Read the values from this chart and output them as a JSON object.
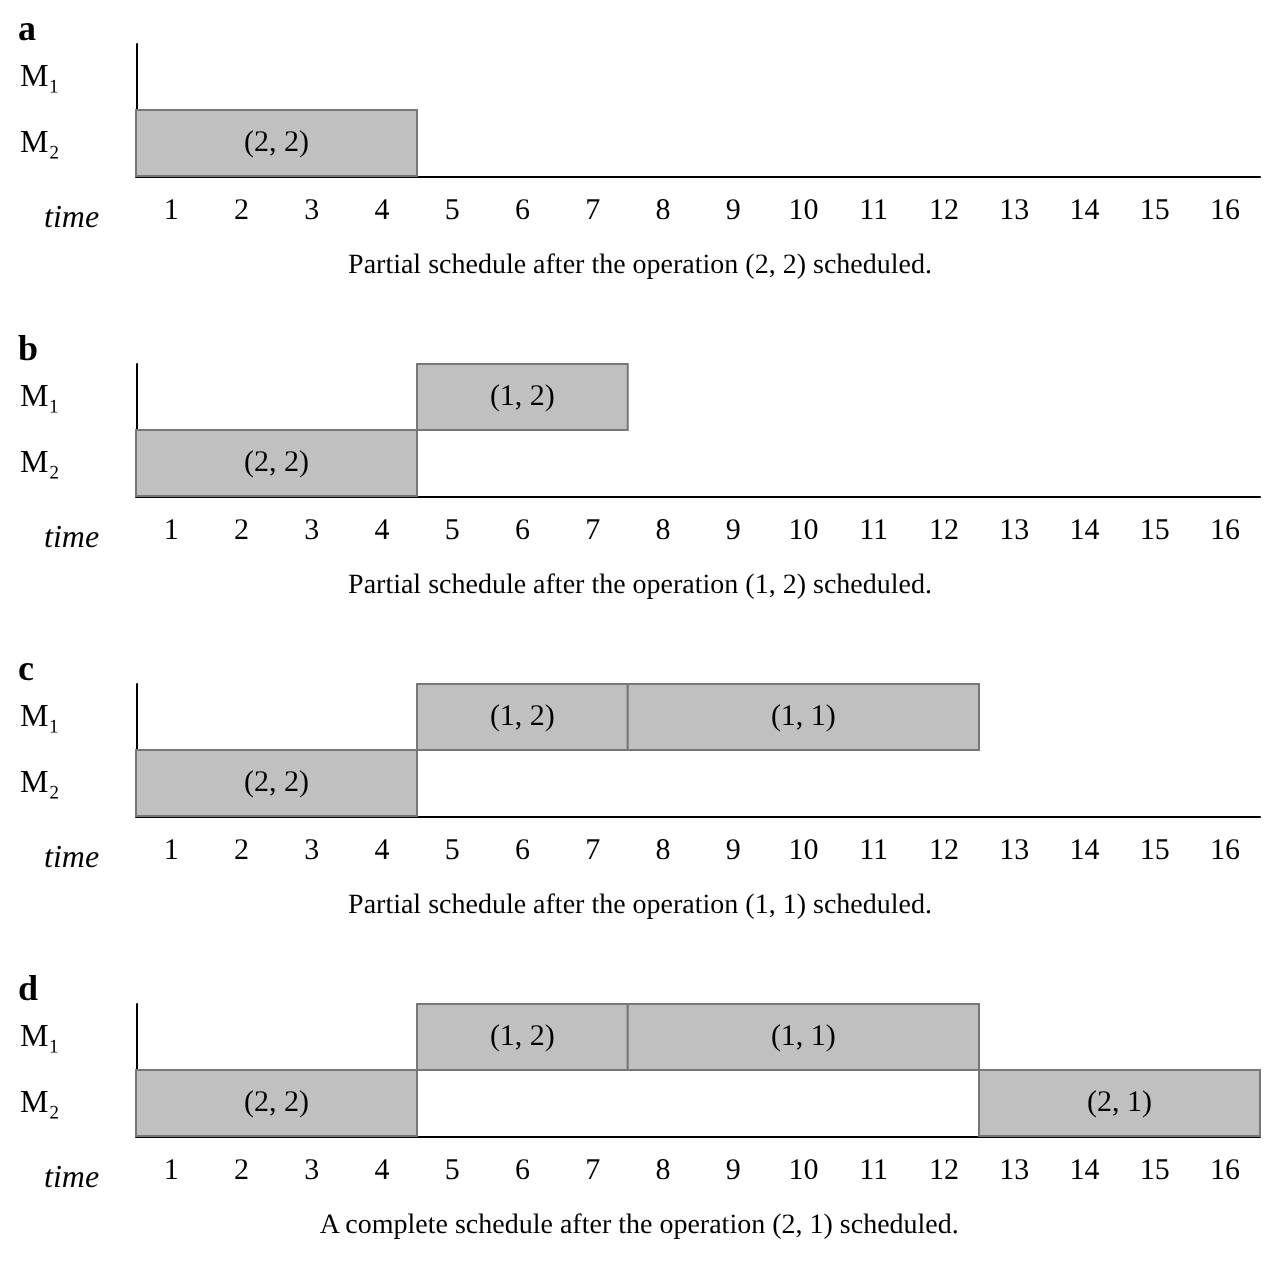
{
  "chart_data": [
    {
      "type": "bar",
      "orientation": "horizontal",
      "title": "a",
      "xlabel": "time",
      "categories": [
        "M₁",
        "M₂"
      ],
      "xlim": [
        0.5,
        16.5
      ],
      "xticks": [
        1,
        2,
        3,
        4,
        5,
        6,
        7,
        8,
        9,
        10,
        11,
        12,
        13,
        14,
        15,
        16
      ],
      "grid": false,
      "series": [
        {
          "color": "#c0c0c0",
          "values": [
            null,
            4
          ],
          "base": [
            null,
            0.5
          ],
          "value_labels": [
            null,
            "(2, 2)"
          ]
        }
      ],
      "annotations": [
        "Partial schedule after the operation (2, 2) scheduled."
      ]
    },
    {
      "type": "bar",
      "orientation": "horizontal",
      "title": "b",
      "xlabel": "time",
      "categories": [
        "M₁",
        "M₂"
      ],
      "xlim": [
        0.5,
        16.5
      ],
      "xticks": [
        1,
        2,
        3,
        4,
        5,
        6,
        7,
        8,
        9,
        10,
        11,
        12,
        13,
        14,
        15,
        16
      ],
      "grid": false,
      "series": [
        {
          "color": "#c0c0c0",
          "values": [
            null,
            4
          ],
          "base": [
            null,
            0.5
          ],
          "value_labels": [
            null,
            "(2, 2)"
          ]
        },
        {
          "color": "#c0c0c0",
          "values": [
            3,
            null
          ],
          "base": [
            4.5,
            null
          ],
          "value_labels": [
            "(1, 2)",
            null
          ]
        }
      ],
      "annotations": [
        "Partial schedule after the operation (1, 2) scheduled."
      ]
    },
    {
      "type": "bar",
      "orientation": "horizontal",
      "title": "c",
      "xlabel": "time",
      "categories": [
        "M₁",
        "M₂"
      ],
      "xlim": [
        0.5,
        16.5
      ],
      "xticks": [
        1,
        2,
        3,
        4,
        5,
        6,
        7,
        8,
        9,
        10,
        11,
        12,
        13,
        14,
        15,
        16
      ],
      "grid": false,
      "series": [
        {
          "color": "#c0c0c0",
          "values": [
            null,
            4
          ],
          "base": [
            null,
            0.5
          ],
          "value_labels": [
            null,
            "(2, 2)"
          ]
        },
        {
          "color": "#c0c0c0",
          "values": [
            3,
            null
          ],
          "base": [
            4.5,
            null
          ],
          "value_labels": [
            "(1, 2)",
            null
          ]
        },
        {
          "color": "#c0c0c0",
          "values": [
            5,
            null
          ],
          "base": [
            7.5,
            null
          ],
          "value_labels": [
            "(1, 1)",
            null
          ]
        }
      ],
      "annotations": [
        "Partial schedule after the operation (1, 1) scheduled."
      ]
    },
    {
      "type": "bar",
      "orientation": "horizontal",
      "title": "d",
      "xlabel": "time",
      "categories": [
        "M₁",
        "M₂"
      ],
      "xlim": [
        0.5,
        16.5
      ],
      "xticks": [
        1,
        2,
        3,
        4,
        5,
        6,
        7,
        8,
        9,
        10,
        11,
        12,
        13,
        14,
        15,
        16
      ],
      "grid": false,
      "series": [
        {
          "color": "#c0c0c0",
          "values": [
            null,
            4
          ],
          "base": [
            null,
            0.5
          ],
          "value_labels": [
            null,
            "(2, 2)"
          ]
        },
        {
          "color": "#c0c0c0",
          "values": [
            3,
            null
          ],
          "base": [
            4.5,
            null
          ],
          "value_labels": [
            "(1, 2)",
            null
          ]
        },
        {
          "color": "#c0c0c0",
          "values": [
            5,
            null
          ],
          "base": [
            7.5,
            null
          ],
          "value_labels": [
            "(1, 1)",
            null
          ]
        },
        {
          "color": "#c0c0c0",
          "values": [
            null,
            4
          ],
          "base": [
            null,
            12.5
          ],
          "value_labels": [
            null,
            "(2, 1)"
          ]
        }
      ],
      "annotations": [
        "A complete schedule after the operation (2, 1) scheduled."
      ]
    }
  ]
}
